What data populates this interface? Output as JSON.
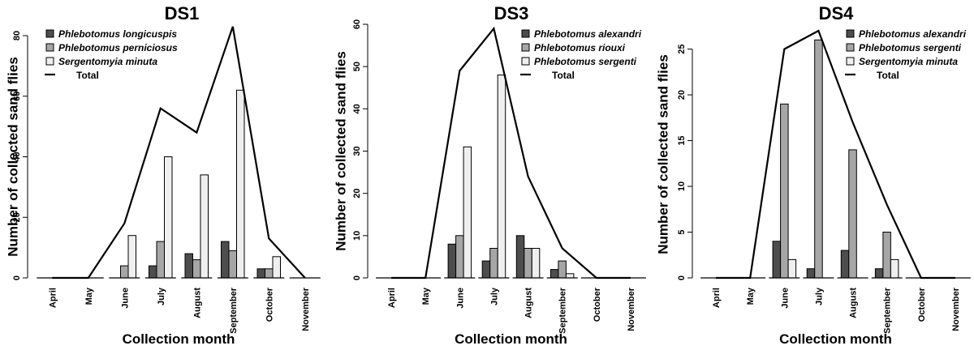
{
  "colors": {
    "series_fills": [
      "#4d4d4d",
      "#a6a6a6",
      "#efefef"
    ],
    "bar_stroke": "#000000",
    "total_line": "#000000"
  },
  "chart_data": [
    {
      "type": "bar",
      "title": "DS1",
      "xlabel": "Collection month",
      "ylabel": "Number of collected sand flies",
      "categories": [
        "April",
        "May",
        "June",
        "July",
        "August",
        "September",
        "October",
        "November"
      ],
      "ylim": [
        0,
        80
      ],
      "yticks": [
        0,
        20,
        40,
        60,
        80
      ],
      "legend_position": "top-left",
      "series": [
        {
          "name": "Phlebotomus longicuspis",
          "values": [
            0,
            0,
            0,
            4,
            8,
            12,
            3,
            0
          ]
        },
        {
          "name": "Phlebotomus perniciosus",
          "values": [
            0,
            0,
            4,
            12,
            6,
            9,
            3,
            0
          ]
        },
        {
          "name": "Sergentomyia minuta",
          "values": [
            0,
            0,
            14,
            40,
            34,
            62,
            7,
            0
          ]
        }
      ],
      "total": {
        "name": "Total",
        "values": [
          0,
          0,
          18,
          56,
          48,
          83,
          13,
          0
        ]
      }
    },
    {
      "type": "bar",
      "title": "DS3",
      "xlabel": "Collection month",
      "ylabel": "Number of collected sand flies",
      "categories": [
        "April",
        "May",
        "June",
        "July",
        "August",
        "September",
        "October",
        "November"
      ],
      "ylim": [
        0,
        60
      ],
      "yticks": [
        0,
        10,
        20,
        30,
        40,
        50,
        60
      ],
      "legend_position": "top-right",
      "series": [
        {
          "name": "Phlebotomus alexandri",
          "values": [
            0,
            0,
            8,
            4,
            10,
            2,
            0,
            0
          ]
        },
        {
          "name": "Phlebotomus riouxi",
          "values": [
            0,
            0,
            10,
            7,
            7,
            4,
            0,
            0
          ]
        },
        {
          "name": "Phlebotomus sergenti",
          "values": [
            0,
            0,
            31,
            48,
            7,
            1,
            0,
            0
          ]
        }
      ],
      "total": {
        "name": "Total",
        "values": [
          0,
          0,
          49,
          59,
          24,
          7,
          0,
          0
        ]
      }
    },
    {
      "type": "bar",
      "title": "DS4",
      "xlabel": "Collection month",
      "ylabel": "Number of collected sand flies",
      "categories": [
        "April",
        "May",
        "June",
        "July",
        "August",
        "September",
        "October",
        "November"
      ],
      "ylim": [
        0,
        27
      ],
      "yticks": [
        0,
        5,
        10,
        15,
        20,
        25
      ],
      "legend_position": "top-right",
      "series": [
        {
          "name": "Phlebotomus alexandri",
          "values": [
            0,
            0,
            4,
            1,
            3,
            1,
            0,
            0
          ]
        },
        {
          "name": "Phlebotomus sergenti",
          "values": [
            0,
            0,
            19,
            26,
            14,
            5,
            0,
            0
          ]
        },
        {
          "name": "Sergentomyia minuta",
          "values": [
            0,
            0,
            2,
            0,
            0,
            2,
            0,
            0
          ]
        }
      ],
      "total": {
        "name": "Total",
        "values": [
          0,
          0,
          25,
          27,
          17,
          8,
          0,
          0
        ]
      }
    }
  ]
}
